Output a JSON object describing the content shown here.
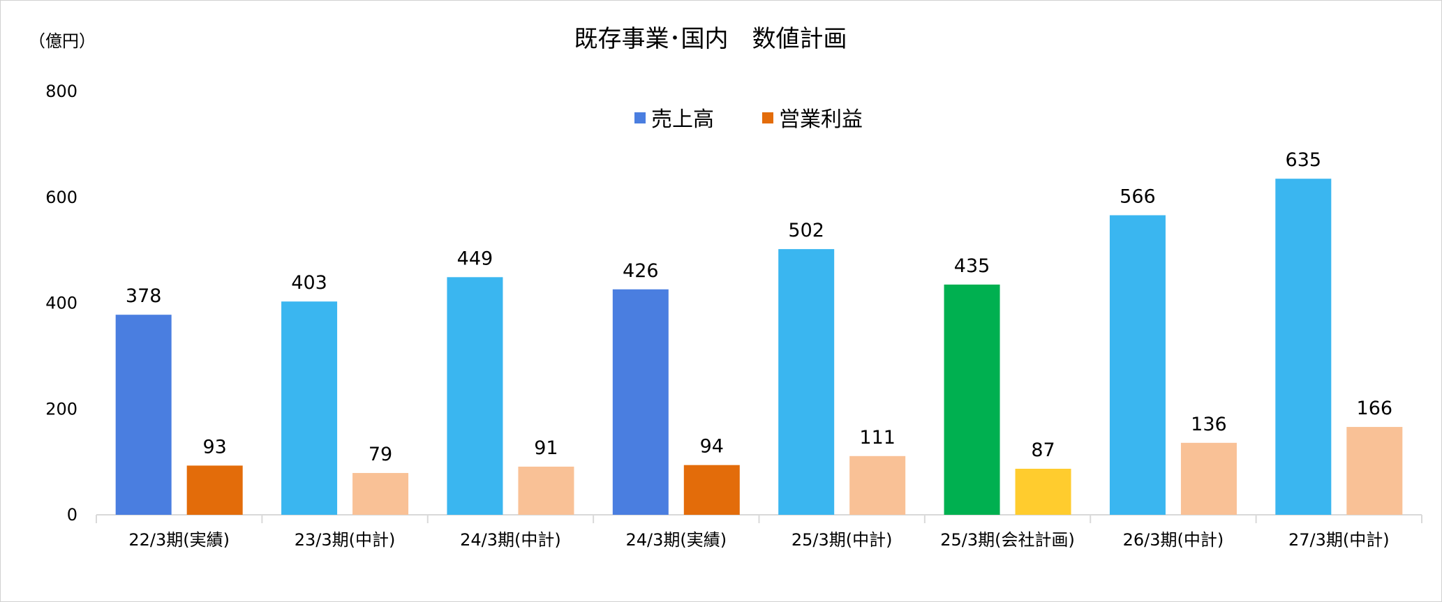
{
  "chart_data": {
    "type": "bar",
    "title": "既存事業･国内　数値計画",
    "unit_label": "（億円）",
    "ylim": [
      0,
      800
    ],
    "yticks": [
      "0",
      "200",
      "400",
      "600",
      "800"
    ],
    "grid": false,
    "legend_position": "top-center",
    "categories": [
      "22/3期(実績)",
      "23/3期(中計)",
      "24/3期(中計)",
      "24/3期(実績)",
      "25/3期(中計)",
      "25/3期(会社計画)",
      "26/3期(中計)",
      "27/3期(中計)"
    ],
    "series": [
      {
        "name": "売上高",
        "legend_color": "#4A7EE0",
        "values": [
          378,
          403,
          449,
          426,
          502,
          435,
          566,
          635
        ],
        "colors": [
          "#4A7EE0",
          "#3AB6F0",
          "#3AB6F0",
          "#4A7EE0",
          "#3AB6F0",
          "#00B050",
          "#3AB6F0",
          "#3AB6F0"
        ]
      },
      {
        "name": "営業利益",
        "legend_color": "#E36C0A",
        "values": [
          93,
          79,
          91,
          94,
          111,
          87,
          136,
          166
        ],
        "colors": [
          "#E36C0A",
          "#F9C196",
          "#F9C196",
          "#E36C0A",
          "#F9C196",
          "#FFCC2E",
          "#F9C196",
          "#F9C196"
        ]
      }
    ]
  }
}
